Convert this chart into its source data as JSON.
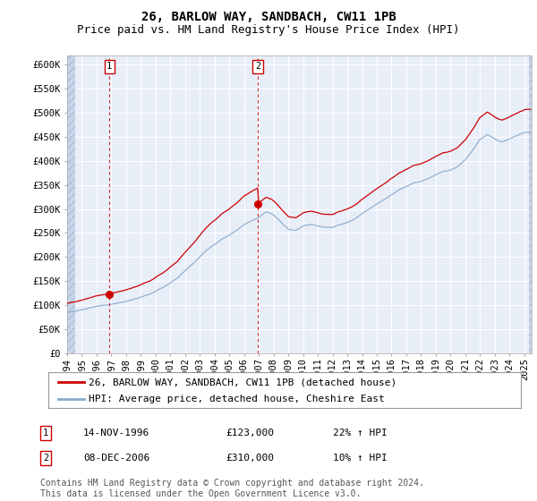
{
  "title": "26, BARLOW WAY, SANDBACH, CW11 1PB",
  "subtitle": "Price paid vs. HM Land Registry's House Price Index (HPI)",
  "ylim": [
    0,
    620000
  ],
  "yticks": [
    0,
    50000,
    100000,
    150000,
    200000,
    250000,
    300000,
    350000,
    400000,
    450000,
    500000,
    550000,
    600000
  ],
  "ytick_labels": [
    "£0",
    "£50K",
    "£100K",
    "£150K",
    "£200K",
    "£250K",
    "£300K",
    "£350K",
    "£400K",
    "£450K",
    "£500K",
    "£550K",
    "£600K"
  ],
  "xlim_start": 1994.0,
  "xlim_end": 2025.5,
  "xticks": [
    1994,
    1995,
    1996,
    1997,
    1998,
    1999,
    2000,
    2001,
    2002,
    2003,
    2004,
    2005,
    2006,
    2007,
    2008,
    2009,
    2010,
    2011,
    2012,
    2013,
    2014,
    2015,
    2016,
    2017,
    2018,
    2019,
    2020,
    2021,
    2022,
    2023,
    2024,
    2025
  ],
  "background_color": "#FFFFFF",
  "plot_bg_color": "#E8EEF8",
  "hatch_color": "#C8D4E8",
  "grid_color": "#CCCCCC",
  "line1_color": "#CC0000",
  "line2_color": "#88AACC",
  "marker1_color": "#CC0000",
  "sale1_x": 1996.87,
  "sale1_y": 123000,
  "sale1_label": "1",
  "sale2_x": 2006.93,
  "sale2_y": 310000,
  "sale2_label": "2",
  "legend_line1": "26, BARLOW WAY, SANDBACH, CW11 1PB (detached house)",
  "legend_line2": "HPI: Average price, detached house, Cheshire East",
  "table_row1": [
    "1",
    "14-NOV-1996",
    "£123,000",
    "22% ↑ HPI"
  ],
  "table_row2": [
    "2",
    "08-DEC-2006",
    "£310,000",
    "10% ↑ HPI"
  ],
  "footer": "Contains HM Land Registry data © Crown copyright and database right 2024.\nThis data is licensed under the Open Government Licence v3.0.",
  "title_fontsize": 10,
  "subtitle_fontsize": 9,
  "axis_fontsize": 7.5,
  "legend_fontsize": 8,
  "table_fontsize": 8
}
